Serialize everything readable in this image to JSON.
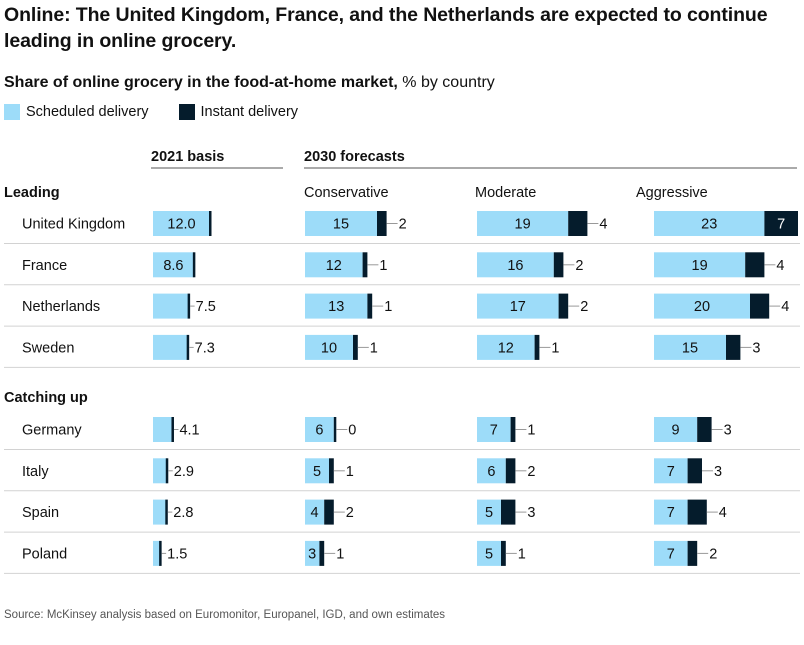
{
  "title": "Online: The United Kingdom, France, and the Netherlands are expected to continue leading in online grocery.",
  "subtitle_bold": "Share of online grocery in the food-at-home market,",
  "subtitle_rest": " % by country",
  "legend": [
    {
      "name": "Scheduled delivery",
      "color": "#9ddcf9"
    },
    {
      "name": "Instant delivery",
      "color": "#051c2c"
    }
  ],
  "source": "Source: McKinsey analysis based on Euromonitor, Europanel, IGD, and own estimates",
  "chart_data": {
    "type": "bar",
    "orientation": "horizontal",
    "stacked": true,
    "column_groups": [
      {
        "label": "2021 basis",
        "columns": [
          {
            "key": "basis",
            "label": ""
          }
        ]
      },
      {
        "label": "2030 forecasts",
        "columns": [
          {
            "key": "conservative",
            "label": "Conservative"
          },
          {
            "key": "moderate",
            "label": "Moderate"
          },
          {
            "key": "aggressive",
            "label": "Aggressive"
          }
        ]
      }
    ],
    "series": [
      {
        "name": "Scheduled delivery",
        "color": "#9ddcf9"
      },
      {
        "name": "Instant delivery",
        "color": "#051c2c"
      }
    ],
    "groups": [
      {
        "label": "Leading",
        "rows": [
          {
            "country": "United Kingdom",
            "basis": "12.0",
            "conservative": [
              15,
              2
            ],
            "moderate": [
              19,
              4
            ],
            "aggressive": [
              23,
              7
            ]
          },
          {
            "country": "France",
            "basis": "8.6",
            "conservative": [
              12,
              1
            ],
            "moderate": [
              16,
              2
            ],
            "aggressive": [
              19,
              4
            ]
          },
          {
            "country": "Netherlands",
            "basis": "7.5",
            "conservative": [
              13,
              1
            ],
            "moderate": [
              17,
              2
            ],
            "aggressive": [
              20,
              4
            ]
          },
          {
            "country": "Sweden",
            "basis": "7.3",
            "conservative": [
              10,
              1
            ],
            "moderate": [
              12,
              1
            ],
            "aggressive": [
              15,
              3
            ]
          }
        ]
      },
      {
        "label": "Catching up",
        "rows": [
          {
            "country": "Germany",
            "basis": "4.1",
            "conservative": [
              6,
              0
            ],
            "moderate": [
              7,
              1
            ],
            "aggressive": [
              9,
              3
            ]
          },
          {
            "country": "Italy",
            "basis": "2.9",
            "conservative": [
              5,
              1
            ],
            "moderate": [
              6,
              2
            ],
            "aggressive": [
              7,
              3
            ]
          },
          {
            "country": "Spain",
            "basis": "2.8",
            "conservative": [
              4,
              2
            ],
            "moderate": [
              5,
              3
            ],
            "aggressive": [
              7,
              4
            ]
          },
          {
            "country": "Poland",
            "basis": "1.5",
            "conservative": [
              3,
              1
            ],
            "moderate": [
              5,
              1
            ],
            "aggressive": [
              7,
              2
            ]
          }
        ]
      }
    ]
  }
}
